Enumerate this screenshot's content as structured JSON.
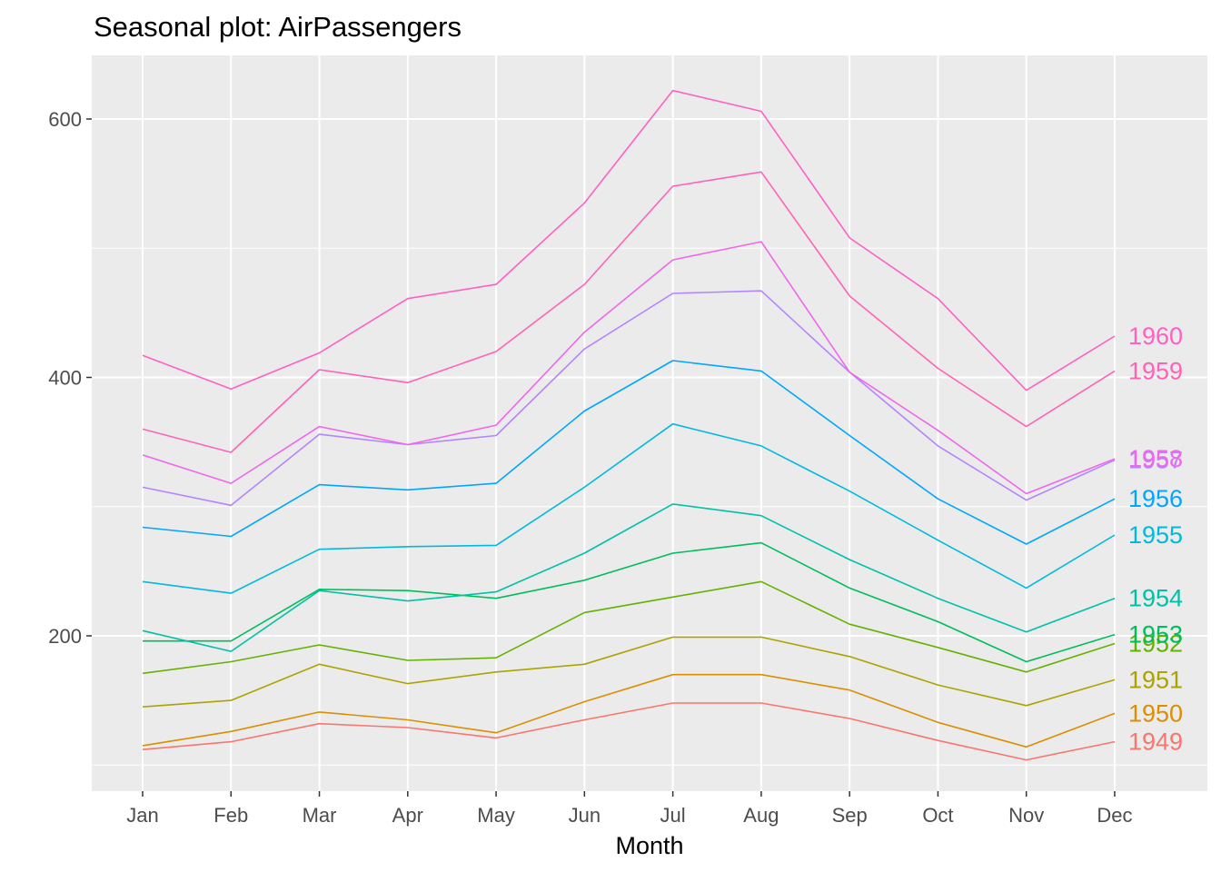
{
  "chart_data": {
    "type": "line",
    "title": "Seasonal plot: AirPassengers",
    "xlabel": "Month",
    "ylabel": "",
    "categories": [
      "Jan",
      "Feb",
      "Mar",
      "Apr",
      "May",
      "Jun",
      "Jul",
      "Aug",
      "Sep",
      "Oct",
      "Nov",
      "Dec"
    ],
    "yticks": [
      200,
      400,
      600
    ],
    "ylim": [
      81,
      648
    ],
    "grid": true,
    "legend": "none",
    "series": [
      {
        "name": "1949",
        "color": "#F8766D",
        "values": [
          112,
          118,
          132,
          129,
          121,
          135,
          148,
          148,
          136,
          119,
          104,
          118
        ]
      },
      {
        "name": "1950",
        "color": "#DB8E00",
        "values": [
          115,
          126,
          141,
          135,
          125,
          149,
          170,
          170,
          158,
          133,
          114,
          140
        ]
      },
      {
        "name": "1951",
        "color": "#AEA200",
        "values": [
          145,
          150,
          178,
          163,
          172,
          178,
          199,
          199,
          184,
          162,
          146,
          166
        ]
      },
      {
        "name": "1952",
        "color": "#64B200",
        "values": [
          171,
          180,
          193,
          181,
          183,
          218,
          230,
          242,
          209,
          191,
          172,
          194
        ]
      },
      {
        "name": "1953",
        "color": "#00BD5C",
        "values": [
          196,
          196,
          236,
          235,
          229,
          243,
          264,
          272,
          237,
          211,
          180,
          201
        ]
      },
      {
        "name": "1954",
        "color": "#00C1A7",
        "values": [
          204,
          188,
          235,
          227,
          234,
          264,
          302,
          293,
          259,
          229,
          203,
          229
        ]
      },
      {
        "name": "1955",
        "color": "#00BADE",
        "values": [
          242,
          233,
          267,
          269,
          270,
          315,
          364,
          347,
          312,
          274,
          237,
          278
        ]
      },
      {
        "name": "1956",
        "color": "#00A6FF",
        "values": [
          284,
          277,
          317,
          313,
          318,
          374,
          413,
          405,
          355,
          306,
          271,
          306
        ]
      },
      {
        "name": "1957",
        "color": "#B385FF",
        "values": [
          315,
          301,
          356,
          348,
          355,
          422,
          465,
          467,
          404,
          347,
          305,
          336
        ]
      },
      {
        "name": "1958",
        "color": "#EF67EB",
        "values": [
          340,
          318,
          362,
          348,
          363,
          435,
          491,
          505,
          404,
          359,
          310,
          337
        ]
      },
      {
        "name": "1959",
        "color": "#FF63B6",
        "values": [
          360,
          342,
          406,
          396,
          420,
          472,
          548,
          559,
          463,
          407,
          362,
          405
        ]
      },
      {
        "name": "1960",
        "color": "#FF61C3",
        "values": [
          417,
          391,
          419,
          461,
          472,
          535,
          622,
          606,
          508,
          461,
          390,
          432
        ]
      }
    ]
  }
}
